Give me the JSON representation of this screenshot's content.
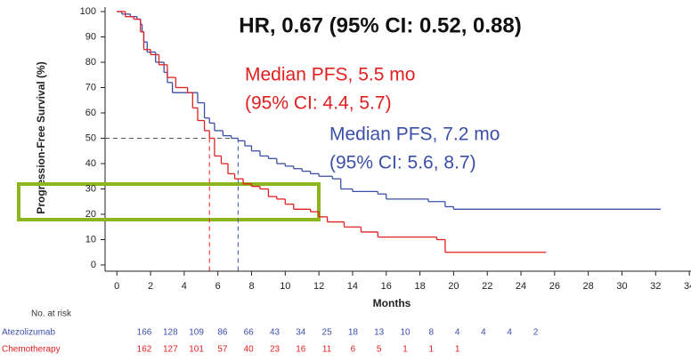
{
  "chart_data": {
    "type": "step",
    "title": "HR, 0.67 (95% CI: 0.52, 0.88)",
    "y_label": "Progression-Free Survival (%)",
    "x_label": "Months",
    "xlim": [
      -0.7,
      34.1
    ],
    "ylim": [
      0,
      100
    ],
    "xticks": [
      0,
      2,
      4,
      6,
      8,
      10,
      12,
      14,
      16,
      18,
      20,
      22,
      24,
      26,
      28,
      30,
      32,
      34
    ],
    "yticks": [
      0,
      10,
      20,
      30,
      40,
      50,
      60,
      70,
      80,
      90,
      100
    ],
    "median_survival": 50,
    "risk_table_title": "No. at risk",
    "series": [
      {
        "name": "Atezolizumab",
        "color": "#3b4fa8",
        "annotation": [
          "Median PFS, 7.2 mo",
          "(95% CI: 5.6, 8.7)"
        ],
        "median": 7.2,
        "x": [
          0,
          0.3,
          0.8,
          1.2,
          1.4,
          1.5,
          1.6,
          1.8,
          2.3,
          2.8,
          3.0,
          3.3,
          4.8,
          5.2,
          5.5,
          5.8,
          6.3,
          6.8,
          7.2,
          7.6,
          8,
          8.5,
          9,
          9.5,
          10,
          10.5,
          11,
          11.5,
          12,
          12.8,
          13.3,
          14,
          15.5,
          16,
          18.5,
          19.5,
          20,
          32.3
        ],
        "values": [
          100,
          99,
          98,
          97,
          95,
          92,
          88,
          84,
          80,
          76,
          72,
          68,
          64,
          58,
          56,
          53,
          51,
          50,
          49,
          47,
          45,
          43,
          42,
          40,
          39,
          38,
          37,
          36,
          35,
          34,
          30,
          29,
          28,
          26,
          25,
          23,
          22,
          22
        ],
        "at_risk": [
          "166",
          "128",
          "109",
          "86",
          "66",
          "43",
          "34",
          "25",
          "18",
          "13",
          "10",
          "8",
          "4",
          "4",
          "4",
          "2"
        ]
      },
      {
        "name": "Chemotherapy",
        "color": "#e02020",
        "annotation": [
          "Median PFS, 5.5 mo",
          "(95% CI: 4.4, 5.7)"
        ],
        "median": 5.5,
        "x": [
          0,
          0.5,
          1,
          1.4,
          1.6,
          2,
          2.5,
          3,
          3.5,
          4.2,
          4.5,
          4.8,
          5.2,
          5.5,
          5.8,
          6.2,
          6.6,
          7,
          7.5,
          8,
          8.5,
          9,
          9.5,
          10,
          10.5,
          11.5,
          12,
          12.5,
          13.5,
          14.5,
          15.5,
          19,
          19.5,
          25.5
        ],
        "values": [
          100,
          98,
          97,
          92,
          85,
          83,
          79,
          74,
          70,
          68,
          62,
          57,
          53,
          50,
          43,
          40,
          36,
          34,
          32,
          31,
          30,
          27,
          26,
          24,
          22,
          21,
          19,
          17,
          15,
          13,
          11,
          10,
          5,
          5
        ],
        "at_risk": [
          "162",
          "127",
          "101",
          "57",
          "40",
          "23",
          "16",
          "11",
          "6",
          "5",
          "1",
          "1",
          "1"
        ]
      }
    ]
  }
}
